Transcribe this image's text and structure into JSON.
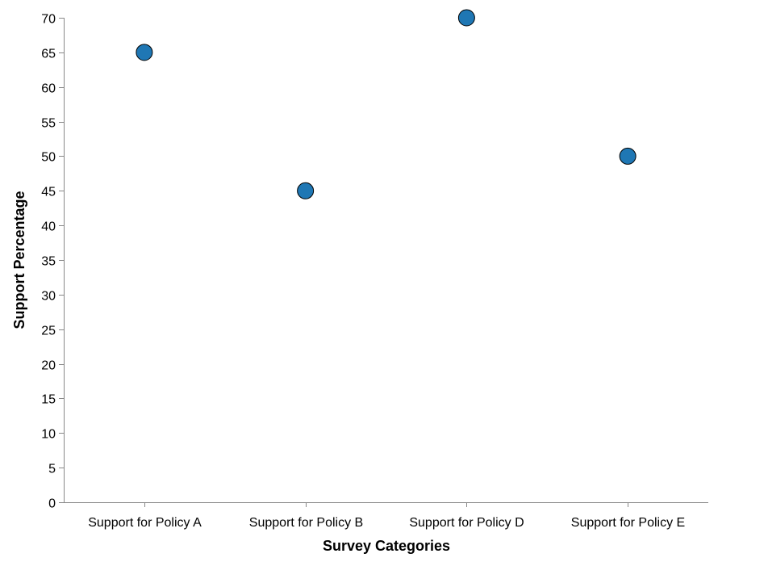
{
  "chart_data": {
    "type": "scatter",
    "title": "",
    "xlabel": "Survey Categories",
    "ylabel": "Support Percentage",
    "categories": [
      "Support for Policy A",
      "Support for Policy B",
      "Support for Policy D",
      "Support for Policy E"
    ],
    "values": [
      65,
      45,
      70,
      50
    ],
    "ylim": [
      0,
      70
    ],
    "yticks": [
      0,
      5,
      10,
      15,
      20,
      25,
      30,
      35,
      40,
      45,
      50,
      55,
      60,
      65,
      70
    ],
    "grid": false,
    "legend": "none",
    "point_color": "#1f77b4"
  }
}
